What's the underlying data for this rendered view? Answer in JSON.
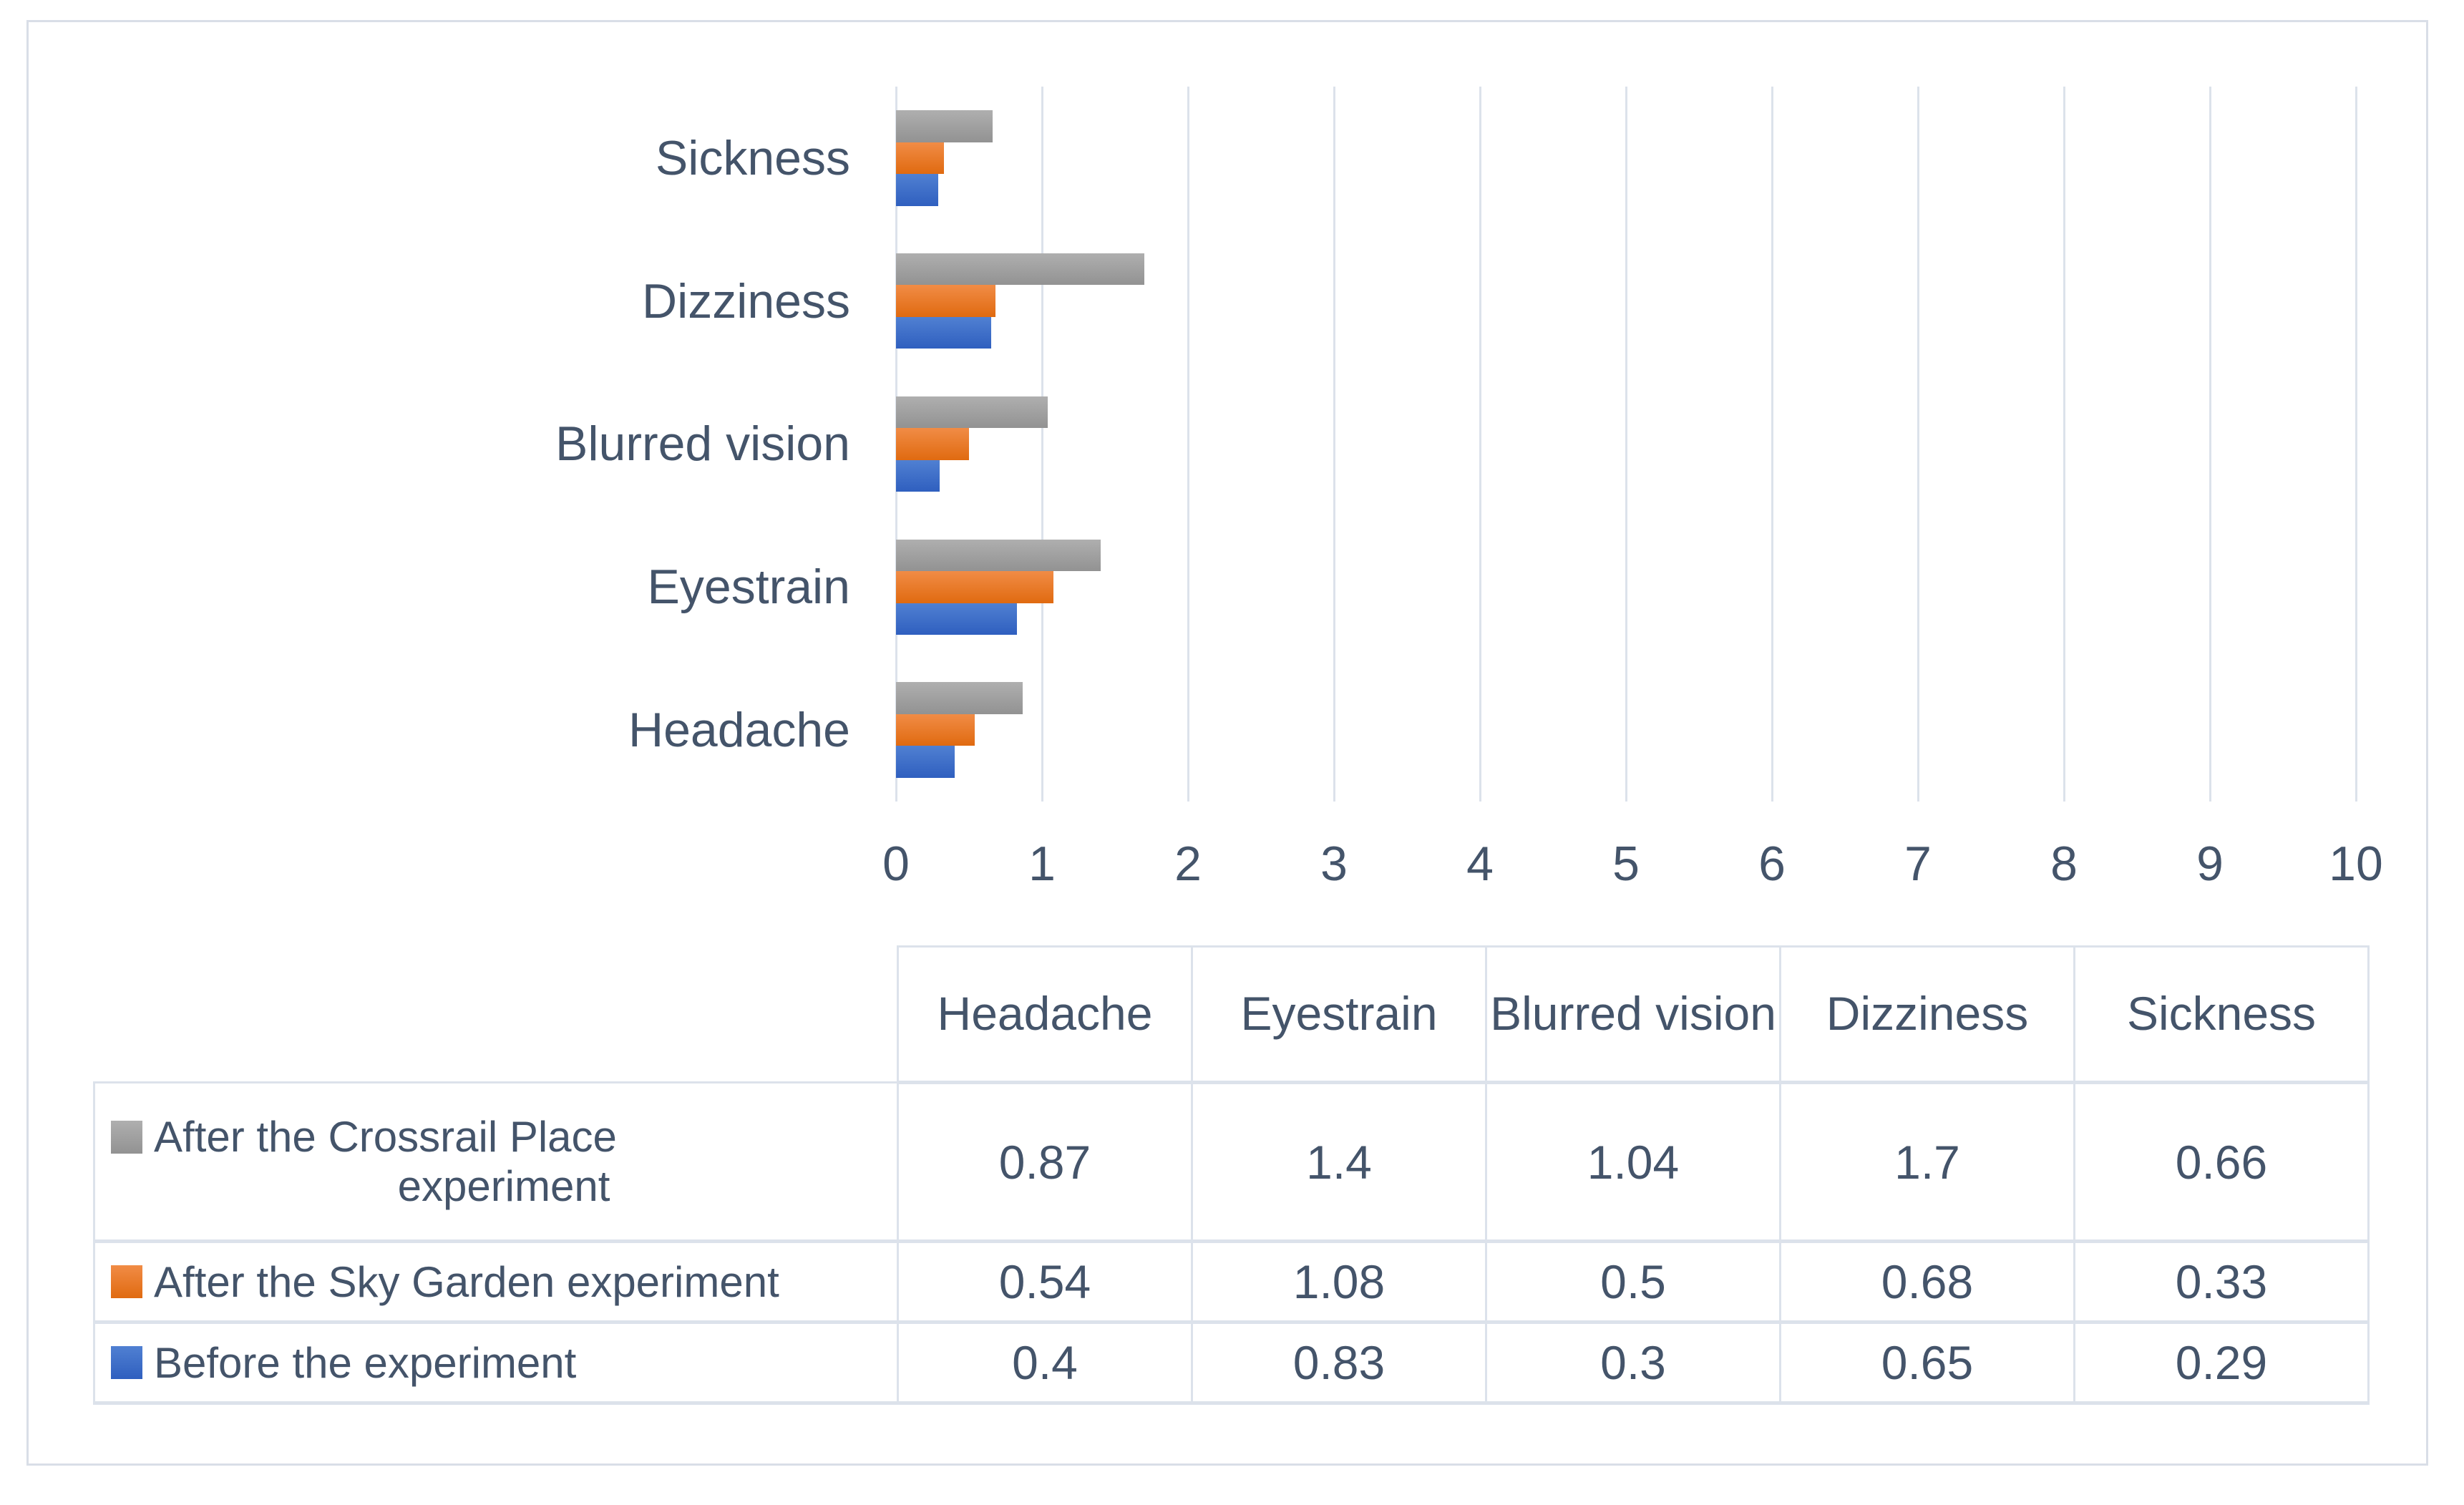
{
  "colors": {
    "text": "#44546A",
    "gridline": "#DCE2EB",
    "table_border": "#DCE2EB",
    "frame_border": "#D9DEE7",
    "background": "#FFFFFF"
  },
  "chart_data": {
    "type": "bar",
    "orientation": "horizontal",
    "title": "",
    "xlabel": "",
    "ylabel": "",
    "xlim": [
      0,
      10
    ],
    "x_ticks": [
      "0",
      "1",
      "2",
      "3",
      "4",
      "5",
      "6",
      "7",
      "8",
      "9",
      "10"
    ],
    "grid": "vertical",
    "categories_top_to_bottom": [
      "Sickness",
      "Dizziness",
      "Blurred vision",
      "Eyestrain",
      "Headache"
    ],
    "series": [
      {
        "name": "After the Crossrail Place experiment",
        "color_top": "#AFAFAF",
        "color_bottom": "#929292",
        "values_top_to_bottom": [
          0.66,
          1.7,
          1.04,
          1.4,
          0.87
        ]
      },
      {
        "name": "After the Sky Garden experiment",
        "color_top": "#F18C46",
        "color_bottom": "#E06A10",
        "values_top_to_bottom": [
          0.33,
          0.68,
          0.5,
          1.08,
          0.54
        ]
      },
      {
        "name": "Before the experiment",
        "color_top": "#5080D2",
        "color_bottom": "#2F5FBF",
        "values_top_to_bottom": [
          0.29,
          0.65,
          0.3,
          0.83,
          0.4
        ]
      }
    ],
    "legend_position": "table-left"
  },
  "table": {
    "column_headers": [
      "Headache",
      "Eyestrain",
      "Blurred vision",
      "Dizziness",
      "Sickness"
    ],
    "rows": [
      {
        "legend_lines": [
          "After the Crossrail Place",
          "experiment"
        ],
        "values": [
          "0.87",
          "1.4",
          "1.04",
          "1.7",
          "0.66"
        ]
      },
      {
        "legend_lines": [
          "After the Sky Garden experiment"
        ],
        "values": [
          "0.54",
          "1.08",
          "0.5",
          "0.68",
          "0.33"
        ]
      },
      {
        "legend_lines": [
          "Before the experiment"
        ],
        "values": [
          "0.4",
          "0.83",
          "0.3",
          "0.65",
          "0.29"
        ]
      }
    ]
  }
}
